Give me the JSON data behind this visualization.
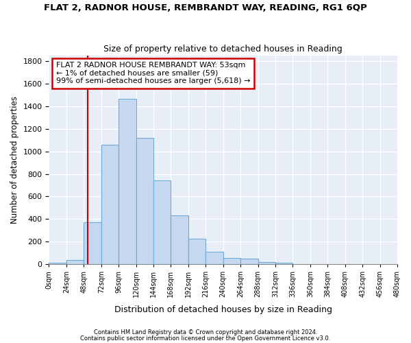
{
  "title1": "FLAT 2, RADNOR HOUSE, REMBRANDT WAY, READING, RG1 6QP",
  "title2": "Size of property relative to detached houses in Reading",
  "xlabel": "Distribution of detached houses by size in Reading",
  "ylabel": "Number of detached properties",
  "bar_values": [
    15,
    35,
    370,
    1060,
    1470,
    1120,
    740,
    435,
    228,
    108,
    55,
    50,
    20,
    15,
    0,
    0,
    0,
    0,
    0,
    0
  ],
  "bin_starts": [
    0,
    24,
    48,
    72,
    96,
    120,
    144,
    168,
    192,
    216,
    240,
    264,
    288,
    312,
    336,
    360,
    384,
    408,
    432,
    456
  ],
  "bin_width": 24,
  "bar_color": "#c5d8f0",
  "bar_edge_color": "#6aaad4",
  "property_size": 53,
  "vline_color": "#cc0000",
  "annotation_line1": "FLAT 2 RADNOR HOUSE REMBRANDT WAY: 53sqm",
  "annotation_line2": "← 1% of detached houses are smaller (59)",
  "annotation_line3": "99% of semi-detached houses are larger (5,618) →",
  "annotation_box_color": "#ffffff",
  "annotation_border_color": "#cc0000",
  "ylim": [
    0,
    1850
  ],
  "xlim": [
    0,
    480
  ],
  "tick_labels": [
    "0sqm",
    "24sqm",
    "48sqm",
    "72sqm",
    "96sqm",
    "120sqm",
    "144sqm",
    "168sqm",
    "192sqm",
    "216sqm",
    "240sqm",
    "264sqm",
    "288sqm",
    "312sqm",
    "336sqm",
    "360sqm",
    "384sqm",
    "408sqm",
    "432sqm",
    "456sqm",
    "480sqm"
  ],
  "tick_positions": [
    0,
    24,
    48,
    72,
    96,
    120,
    144,
    168,
    192,
    216,
    240,
    264,
    288,
    312,
    336,
    360,
    384,
    408,
    432,
    456,
    480
  ],
  "footer1": "Contains HM Land Registry data © Crown copyright and database right 2024.",
  "footer2": "Contains public sector information licensed under the Open Government Licence v3.0.",
  "bg_color": "#ffffff",
  "plot_bg_color": "#e8eef8"
}
